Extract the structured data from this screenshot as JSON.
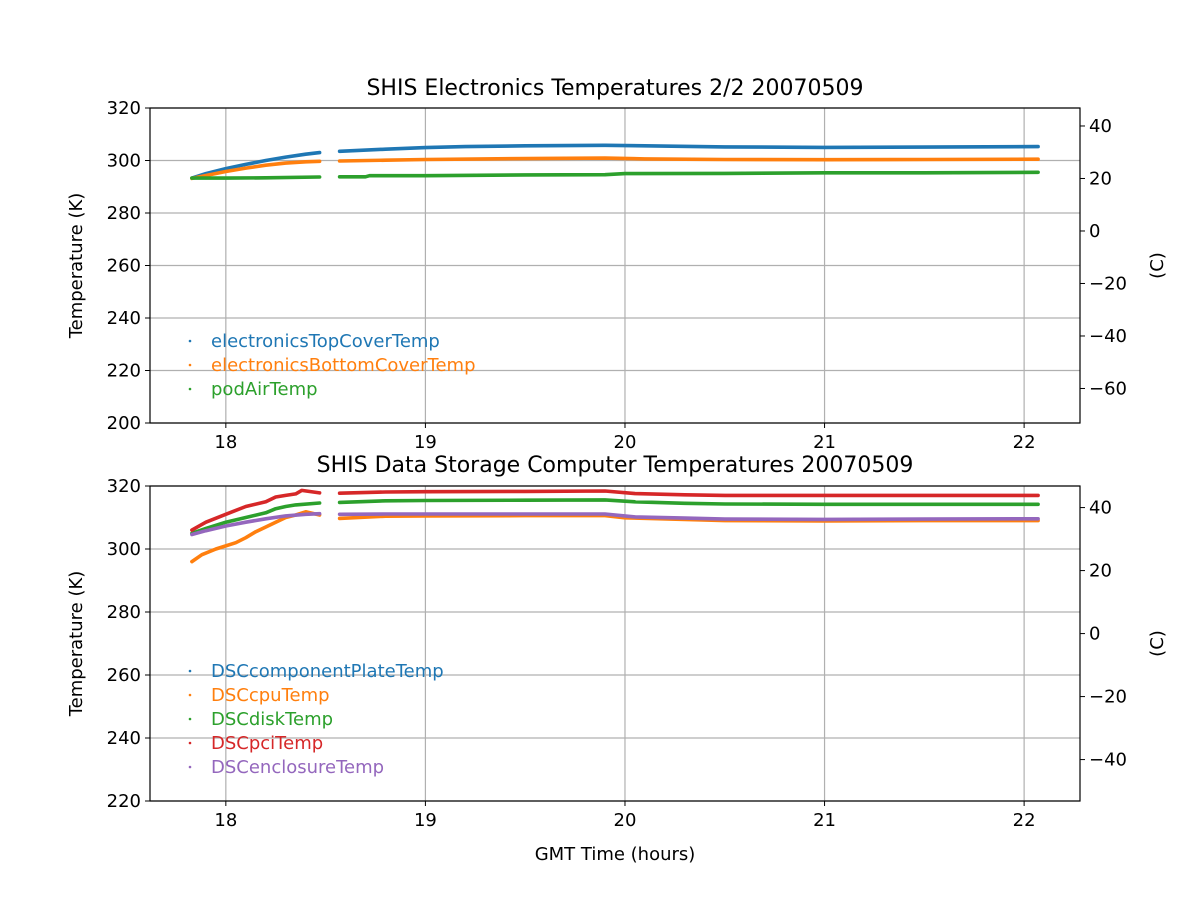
{
  "figure": {
    "background": "#ffffff",
    "grid_color": "#b0b0b0",
    "axis_color": "#000000"
  },
  "chart_data": [
    {
      "type": "scatter",
      "title": "SHIS Electronics Temperatures 2/2 20070509",
      "xlabel": "",
      "ylabel": "Temperature (K)",
      "y2label": "(C)",
      "xlim": [
        17.62,
        22.28
      ],
      "ylim": [
        200,
        320
      ],
      "y2lim": [
        -73.15,
        46.85
      ],
      "xticks": [
        18,
        19,
        20,
        21,
        22
      ],
      "yticks": [
        200,
        220,
        240,
        260,
        280,
        300,
        320
      ],
      "y2ticks": [
        -60,
        -40,
        -20,
        0,
        20,
        40
      ],
      "y2tick_labels": [
        "−60",
        "−40",
        "−20",
        "0",
        "20",
        "40"
      ],
      "grid": true,
      "legend_position": "lower-left",
      "series": [
        {
          "name": "electronicsTopCoverTemp",
          "color": "#1f77b4",
          "segments": [
            [
              [
                17.83,
                293.3
              ],
              [
                17.9,
                295.0
              ],
              [
                18.0,
                296.9
              ],
              [
                18.1,
                298.5
              ],
              [
                18.2,
                300.0
              ],
              [
                18.3,
                301.3
              ],
              [
                18.4,
                302.4
              ],
              [
                18.47,
                303.0
              ]
            ],
            [
              [
                18.57,
                303.5
              ],
              [
                18.8,
                304.3
              ],
              [
                19.0,
                304.9
              ],
              [
                19.2,
                305.3
              ],
              [
                19.5,
                305.6
              ],
              [
                19.9,
                305.8
              ],
              [
                20.1,
                305.6
              ],
              [
                20.5,
                305.2
              ],
              [
                21.0,
                305.0
              ],
              [
                21.5,
                305.1
              ],
              [
                22.07,
                305.3
              ]
            ]
          ]
        },
        {
          "name": "electronicsBottomCoverTemp",
          "color": "#ff7f0e",
          "segments": [
            [
              [
                17.83,
                293.2
              ],
              [
                17.9,
                294.3
              ],
              [
                18.0,
                295.8
              ],
              [
                18.1,
                297.1
              ],
              [
                18.2,
                298.2
              ],
              [
                18.3,
                299.0
              ],
              [
                18.4,
                299.5
              ],
              [
                18.47,
                299.7
              ]
            ],
            [
              [
                18.57,
                299.8
              ],
              [
                18.8,
                300.1
              ],
              [
                19.0,
                300.4
              ],
              [
                19.3,
                300.6
              ],
              [
                19.6,
                300.8
              ],
              [
                19.9,
                300.9
              ],
              [
                20.1,
                300.6
              ],
              [
                20.5,
                300.4
              ],
              [
                21.0,
                300.3
              ],
              [
                21.5,
                300.4
              ],
              [
                22.07,
                300.5
              ]
            ]
          ]
        },
        {
          "name": "podAirTemp",
          "color": "#2ca02c",
          "segments": [
            [
              [
                17.83,
                293.3
              ],
              [
                18.0,
                293.3
              ],
              [
                18.2,
                293.4
              ],
              [
                18.47,
                293.7
              ]
            ],
            [
              [
                18.57,
                293.8
              ],
              [
                18.7,
                293.8
              ],
              [
                18.72,
                294.2
              ],
              [
                19.0,
                294.2
              ],
              [
                19.5,
                294.5
              ],
              [
                19.9,
                294.6
              ],
              [
                20.0,
                295.0
              ],
              [
                20.5,
                295.1
              ],
              [
                21.0,
                295.3
              ],
              [
                21.5,
                295.3
              ],
              [
                22.07,
                295.5
              ]
            ]
          ]
        }
      ]
    },
    {
      "type": "scatter",
      "title": "SHIS Data Storage Computer Temperatures 20070509",
      "xlabel": "GMT Time (hours)",
      "ylabel": "Temperature (K)",
      "y2label": "(C)",
      "xlim": [
        17.62,
        22.28
      ],
      "ylim": [
        220,
        320
      ],
      "y2lim": [
        -53.15,
        46.85
      ],
      "xticks": [
        18,
        19,
        20,
        21,
        22
      ],
      "yticks": [
        220,
        240,
        260,
        280,
        300,
        320
      ],
      "y2ticks": [
        -40,
        -20,
        0,
        20,
        40
      ],
      "y2tick_labels": [
        "−40",
        "−20",
        "0",
        "20",
        "40"
      ],
      "grid": true,
      "legend_position": "lower-left",
      "series": [
        {
          "name": "DSCcomponentPlateTemp",
          "color": "#1f77b4",
          "segments": []
        },
        {
          "name": "DSCcpuTemp",
          "color": "#ff7f0e",
          "segments": [
            [
              [
                17.83,
                296.0
              ],
              [
                17.88,
                298.2
              ],
              [
                17.95,
                300.0
              ],
              [
                18.05,
                302.0
              ],
              [
                18.1,
                303.6
              ],
              [
                18.15,
                305.5
              ],
              [
                18.2,
                307.0
              ],
              [
                18.25,
                308.5
              ],
              [
                18.3,
                310.0
              ],
              [
                18.35,
                310.8
              ],
              [
                18.4,
                311.8
              ],
              [
                18.47,
                310.8
              ]
            ],
            [
              [
                18.57,
                309.7
              ],
              [
                18.8,
                310.4
              ],
              [
                19.0,
                310.5
              ],
              [
                19.5,
                310.6
              ],
              [
                19.9,
                310.6
              ],
              [
                20.0,
                309.9
              ],
              [
                20.3,
                309.4
              ],
              [
                20.5,
                309.0
              ],
              [
                21.0,
                308.9
              ],
              [
                21.5,
                309.0
              ],
              [
                22.07,
                309.0
              ]
            ]
          ]
        },
        {
          "name": "DSCdiskTemp",
          "color": "#2ca02c",
          "segments": [
            [
              [
                17.83,
                305.0
              ],
              [
                17.9,
                306.5
              ],
              [
                18.0,
                308.5
              ],
              [
                18.1,
                310.0
              ],
              [
                18.2,
                311.5
              ],
              [
                18.25,
                312.8
              ],
              [
                18.3,
                313.5
              ],
              [
                18.35,
                314.0
              ],
              [
                18.47,
                314.6
              ]
            ],
            [
              [
                18.57,
                314.8
              ],
              [
                18.8,
                315.3
              ],
              [
                19.0,
                315.4
              ],
              [
                19.5,
                315.5
              ],
              [
                19.9,
                315.6
              ],
              [
                20.05,
                315.0
              ],
              [
                20.3,
                314.5
              ],
              [
                20.5,
                314.3
              ],
              [
                21.0,
                314.2
              ],
              [
                22.07,
                314.2
              ]
            ]
          ]
        },
        {
          "name": "DSCpciTemp",
          "color": "#d62728",
          "segments": [
            [
              [
                17.83,
                306.0
              ],
              [
                17.9,
                308.5
              ],
              [
                18.0,
                311.0
              ],
              [
                18.1,
                313.5
              ],
              [
                18.2,
                315.0
              ],
              [
                18.25,
                316.5
              ],
              [
                18.3,
                317.0
              ],
              [
                18.35,
                317.5
              ],
              [
                18.38,
                318.6
              ],
              [
                18.47,
                317.8
              ]
            ],
            [
              [
                18.57,
                317.7
              ],
              [
                18.8,
                318.1
              ],
              [
                19.0,
                318.2
              ],
              [
                19.5,
                318.3
              ],
              [
                19.9,
                318.4
              ],
              [
                20.05,
                317.6
              ],
              [
                20.3,
                317.2
              ],
              [
                20.5,
                317.0
              ],
              [
                21.0,
                317.0
              ],
              [
                22.07,
                317.0
              ]
            ]
          ]
        },
        {
          "name": "DSCenclosureTemp",
          "color": "#9467bd",
          "segments": [
            [
              [
                17.83,
                304.6
              ],
              [
                17.9,
                305.8
              ],
              [
                18.0,
                307.3
              ],
              [
                18.1,
                308.5
              ],
              [
                18.2,
                309.6
              ],
              [
                18.3,
                310.5
              ],
              [
                18.4,
                311.0
              ],
              [
                18.47,
                311.2
              ]
            ],
            [
              [
                18.57,
                311.0
              ],
              [
                18.8,
                311.1
              ],
              [
                19.0,
                311.1
              ],
              [
                19.5,
                311.1
              ],
              [
                19.9,
                311.1
              ],
              [
                20.05,
                310.2
              ],
              [
                20.3,
                309.8
              ],
              [
                20.5,
                309.5
              ],
              [
                21.0,
                309.4
              ],
              [
                21.5,
                309.5
              ],
              [
                22.07,
                309.6
              ]
            ]
          ]
        }
      ]
    }
  ]
}
